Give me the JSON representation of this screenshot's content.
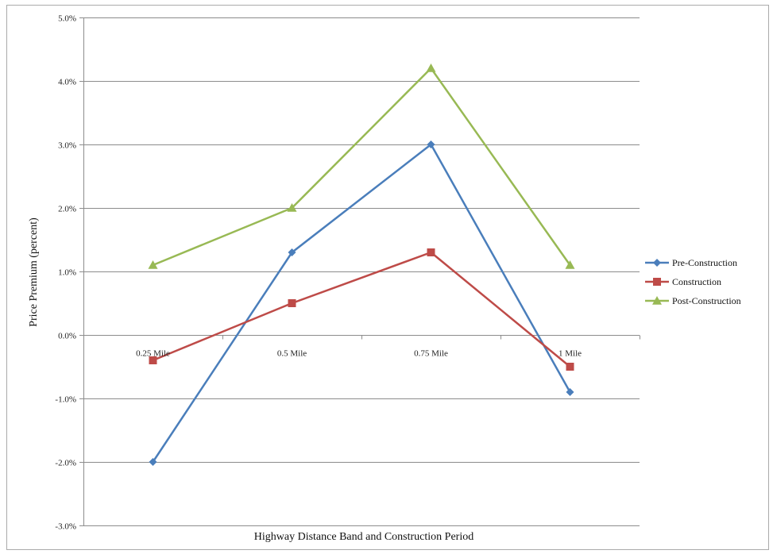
{
  "chart_data": {
    "type": "line",
    "title": "",
    "xlabel": "Highway Distance Band and Construction Period",
    "ylabel": "Price Premium (percent)",
    "categories": [
      "0.25 Mile",
      "0.5 Mile",
      "0.75 Mile",
      "1 Mile"
    ],
    "ylim": [
      -3.0,
      5.0
    ],
    "yticks": [
      5.0,
      4.0,
      3.0,
      2.0,
      1.0,
      0.0,
      -1.0,
      -2.0,
      -3.0
    ],
    "ytick_labels": [
      "5.0%",
      "4.0%",
      "3.0%",
      "2.0%",
      "1.0%",
      "0.0%",
      "-1.0%",
      "-2.0%",
      "-3.0%"
    ],
    "grid": true,
    "legend_position": "right",
    "series": [
      {
        "name": "Pre-Construction",
        "values": [
          -2.0,
          1.3,
          3.0,
          -0.9
        ],
        "color": "#4a7ebb",
        "marker": "diamond"
      },
      {
        "name": "Construction",
        "values": [
          -0.4,
          0.5,
          1.3,
          -0.5
        ],
        "color": "#be4b48",
        "marker": "square"
      },
      {
        "name": "Post-Construction",
        "values": [
          1.1,
          2.0,
          4.2,
          1.1
        ],
        "color": "#98b954",
        "marker": "triangle"
      }
    ]
  }
}
